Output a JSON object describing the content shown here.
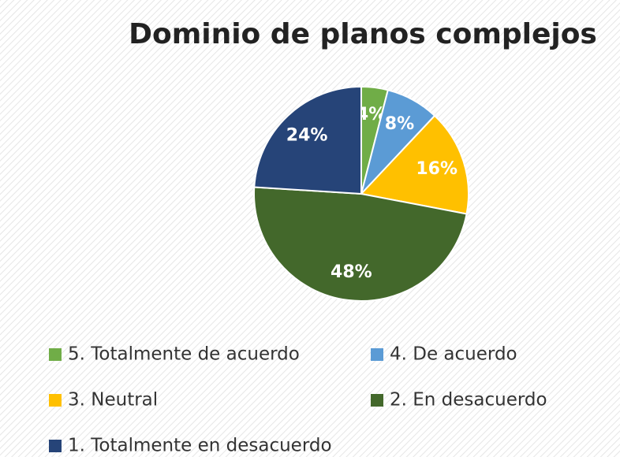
{
  "chart_data": {
    "type": "pie",
    "title": "Dominio de planos complejos",
    "categories": [
      "5. Totalmente de acuerdo",
      "4. De acuerdo",
      "3. Neutral",
      "2. En desacuerdo",
      "1. Totalmente en desacuerdo"
    ],
    "values": [
      4,
      8,
      16,
      48,
      24
    ],
    "value_labels": [
      "4%",
      "8%",
      "16%",
      "48%",
      "24%"
    ],
    "colors": [
      "#70ad47",
      "#5b9bd5",
      "#ffc000",
      "#43682b",
      "#264478"
    ],
    "legend": "bottom"
  }
}
